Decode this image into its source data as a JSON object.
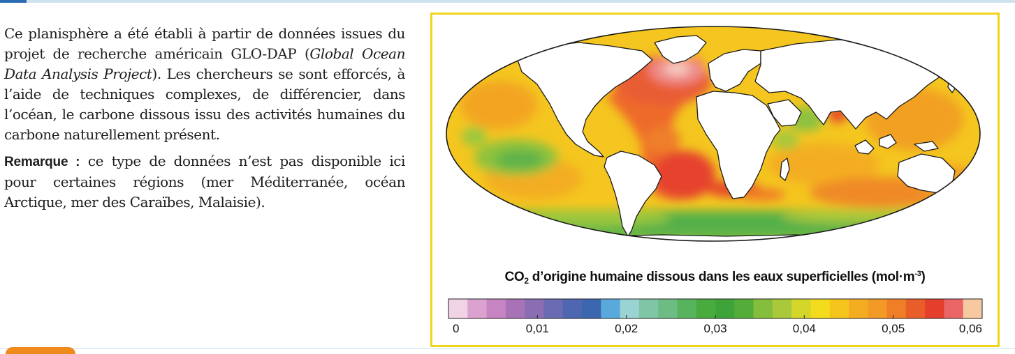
{
  "text": {
    "paragraph_1_pre": "Ce planisphère a été établi à partir de données issues du projet de recherche américain GLO-DAP (",
    "paragraph_1_italic": "Global Ocean Data Analysis Project",
    "paragraph_1_post": "). Les chercheurs se sont efforcés, à l’aide de techniques complexes, de différencier, dans l’océan, le carbone dissous issu des activités humaines du carbone naturellement présent.",
    "remark_label": "Remarque :",
    "remark_text": " ce type de données n’est pas disponible ici  pour certaines régions (mer Méditerranée, océan Arctique, mer des Caraïbes, Malaisie)."
  },
  "figure": {
    "caption_pre": "CO",
    "caption_sub": "2",
    "caption_mid": " d’origine humaine dissous dans les eaux superficielles (mol·m",
    "caption_sup": "-3",
    "caption_post": ")",
    "scale": {
      "min": 0,
      "max": 0.06,
      "tick_labels": [
        "0",
        "0,01",
        "0,02",
        "0,03",
        "0,04",
        "0,05",
        "0,06"
      ],
      "colors": [
        "#f1d3e6",
        "#dca2cf",
        "#c784c2",
        "#a872b6",
        "#8a6db3",
        "#6a6bb2",
        "#4f66b1",
        "#3d66b0",
        "#5aa9dc",
        "#9bd2d3",
        "#7ec6a5",
        "#6cbc84",
        "#58b35e",
        "#49ab3e",
        "#3ea43a",
        "#54ad38",
        "#85bd3c",
        "#a9c83a",
        "#d4d62a",
        "#f3dc1d",
        "#f5c51c",
        "#f4ad20",
        "#f29a25",
        "#ef7e27",
        "#e95d28",
        "#e53e2c",
        "#ea6666",
        "#f7c9a0"
      ]
    },
    "colors": {
      "ocean_base": "#f4c61f",
      "land": "#ffffff",
      "frame_border": "#f1d51c"
    }
  }
}
